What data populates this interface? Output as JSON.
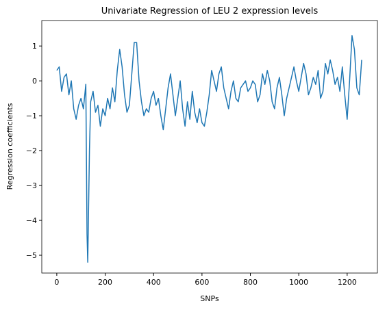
{
  "chart_data": {
    "type": "line",
    "title": "Univariate Regression of LEU 2 expression levels",
    "x_label": "SNPs",
    "y_label": "Regression coefficients",
    "x": [
      0,
      10,
      20,
      30,
      40,
      50,
      60,
      70,
      80,
      90,
      100,
      110,
      120,
      125,
      128,
      135,
      140,
      150,
      160,
      170,
      180,
      190,
      200,
      210,
      220,
      230,
      240,
      250,
      260,
      270,
      280,
      290,
      300,
      310,
      320,
      330,
      340,
      350,
      360,
      370,
      380,
      390,
      400,
      410,
      420,
      430,
      440,
      450,
      460,
      470,
      480,
      490,
      500,
      510,
      520,
      530,
      540,
      550,
      560,
      570,
      580,
      590,
      600,
      610,
      620,
      630,
      640,
      650,
      660,
      670,
      680,
      690,
      700,
      710,
      720,
      730,
      740,
      750,
      760,
      770,
      780,
      790,
      800,
      810,
      820,
      830,
      840,
      850,
      860,
      870,
      880,
      890,
      900,
      910,
      920,
      930,
      940,
      950,
      960,
      970,
      980,
      990,
      1000,
      1010,
      1020,
      1030,
      1040,
      1050,
      1060,
      1070,
      1080,
      1090,
      1100,
      1110,
      1120,
      1130,
      1140,
      1150,
      1160,
      1170,
      1180,
      1190,
      1200,
      1210,
      1220,
      1230,
      1240,
      1250,
      1260
    ],
    "series": [
      {
        "name": "LEU 2",
        "color": "#1f77b4",
        "values": [
          0.3,
          0.4,
          -0.3,
          0.1,
          0.2,
          -0.4,
          0.0,
          -0.8,
          -1.1,
          -0.7,
          -0.5,
          -0.8,
          -0.1,
          -4.4,
          -5.2,
          -2.0,
          -0.6,
          -0.3,
          -0.9,
          -0.7,
          -1.3,
          -0.8,
          -1.0,
          -0.5,
          -0.8,
          -0.2,
          -0.6,
          0.3,
          0.9,
          0.4,
          -0.4,
          -0.9,
          -0.7,
          0.2,
          1.1,
          1.1,
          0.0,
          -0.6,
          -1.0,
          -0.8,
          -0.9,
          -0.5,
          -0.3,
          -0.7,
          -0.5,
          -1.0,
          -1.4,
          -0.8,
          -0.2,
          0.2,
          -0.4,
          -1.0,
          -0.5,
          0.0,
          -0.8,
          -1.3,
          -0.6,
          -1.1,
          -0.3,
          -0.9,
          -1.2,
          -0.8,
          -1.2,
          -1.3,
          -0.9,
          -0.4,
          0.3,
          0.0,
          -0.3,
          0.2,
          0.4,
          -0.2,
          -0.5,
          -0.8,
          -0.3,
          0.0,
          -0.5,
          -0.6,
          -0.2,
          -0.1,
          0.0,
          -0.3,
          -0.2,
          0.0,
          -0.1,
          -0.6,
          -0.4,
          0.2,
          -0.1,
          0.3,
          0.0,
          -0.6,
          -0.8,
          -0.2,
          0.1,
          -0.4,
          -1.0,
          -0.5,
          -0.2,
          0.1,
          0.4,
          0.0,
          -0.3,
          0.1,
          0.5,
          0.2,
          -0.4,
          -0.2,
          0.1,
          -0.1,
          0.3,
          -0.5,
          -0.3,
          0.5,
          0.2,
          0.6,
          0.3,
          -0.1,
          0.1,
          -0.3,
          0.4,
          -0.4,
          -1.1,
          0.0,
          1.3,
          0.9,
          -0.2,
          -0.4,
          0.6
        ]
      }
    ],
    "xlim": [
      -62,
      1325
    ],
    "ylim": [
      -5.51,
      1.73
    ],
    "xticks": [
      0,
      200,
      400,
      600,
      800,
      1000,
      1200
    ],
    "yticks": [
      {
        "value": -5,
        "label": "−5"
      },
      {
        "value": -4,
        "label": "−4"
      },
      {
        "value": -3,
        "label": "−3"
      },
      {
        "value": -2,
        "label": "−2"
      },
      {
        "value": -1,
        "label": "−1"
      },
      0,
      1
    ],
    "grid": false
  }
}
